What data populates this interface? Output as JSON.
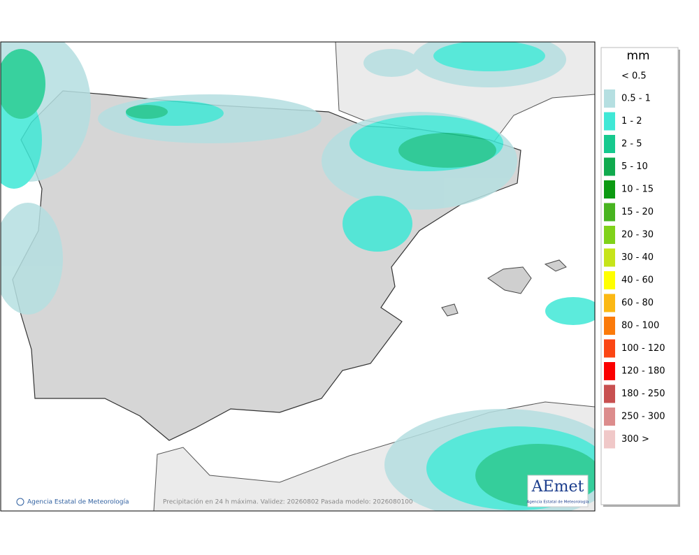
{
  "legend": {
    "title": "mm",
    "below_label": "< 0.5",
    "items": [
      {
        "label": "0.5 - 1",
        "color": "#b5dfe1"
      },
      {
        "label": "1 - 2",
        "color": "#3fe8d6"
      },
      {
        "label": "2 - 5",
        "color": "#16c98e"
      },
      {
        "label": "5 - 10",
        "color": "#10aa4e"
      },
      {
        "label": "10 - 15",
        "color": "#0c9a12"
      },
      {
        "label": "15 - 20",
        "color": "#48b420"
      },
      {
        "label": "20 - 30",
        "color": "#80d21a"
      },
      {
        "label": "30 - 40",
        "color": "#c6e41a"
      },
      {
        "label": "40 - 60",
        "color": "#ffff00"
      },
      {
        "label": "60 - 80",
        "color": "#fbb814"
      },
      {
        "label": "80 - 100",
        "color": "#fb7a0a"
      },
      {
        "label": "100 - 120",
        "color": "#fb4614"
      },
      {
        "label": "120 - 180",
        "color": "#fb0000"
      },
      {
        "label": "180 - 250",
        "color": "#c85050"
      },
      {
        "label": "250 - 300",
        "color": "#dc8c8c"
      },
      {
        "label": "300 >",
        "color": "#f0c8c8"
      }
    ]
  },
  "footer": {
    "credit": "Agencia Estatal de Meteorología",
    "caption": "Precipitación en 24 h máxima. Validez: 20260802 Pasada modelo: 2026080100"
  },
  "logo": {
    "name": "AEmet",
    "subtitle": "Agencia Estatal de Meteorología"
  }
}
